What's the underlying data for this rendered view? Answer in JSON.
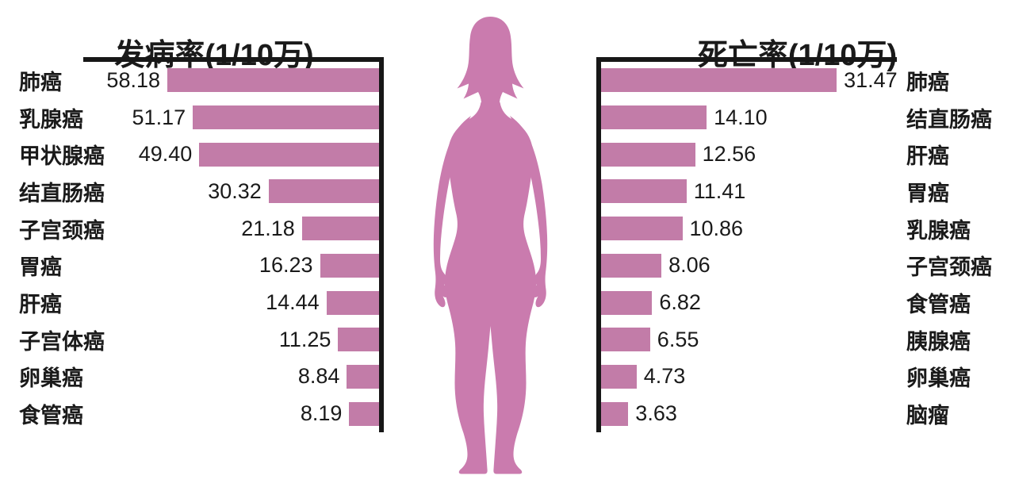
{
  "chart_data": [
    {
      "type": "bar",
      "orientation": "horizontal-bars-growing-left",
      "title": "发病率(1/10万)",
      "categories": [
        "肺癌",
        "乳腺癌",
        "甲状腺癌",
        "结直肠癌",
        "子宫颈癌",
        "胃癌",
        "肝癌",
        "子宫体癌",
        "卵巢癌",
        "食管癌"
      ],
      "values": [
        58.18,
        51.17,
        49.4,
        30.32,
        21.18,
        16.23,
        14.44,
        11.25,
        8.84,
        8.19
      ],
      "value_labels": [
        "58.18",
        "51.17",
        "49.40",
        "30.32",
        "21.18",
        "16.23",
        "14.44",
        "11.25",
        "8.84",
        "8.19"
      ],
      "xlim": [
        0,
        82
      ],
      "grid": false,
      "legend": "none",
      "bar_color": "#c27ca8",
      "category_labels_position": "far-left",
      "value_labels_position": "left-of-bar"
    },
    {
      "type": "bar",
      "orientation": "horizontal-bars-growing-right",
      "title": "死亡率(1/10万)",
      "categories": [
        "肺癌",
        "结直肠癌",
        "肝癌",
        "胃癌",
        "乳腺癌",
        "子宫颈癌",
        "食管癌",
        "胰腺癌",
        "卵巢癌",
        "脑瘤"
      ],
      "values": [
        31.47,
        14.1,
        12.56,
        11.41,
        10.86,
        8.06,
        6.82,
        6.55,
        4.73,
        3.63
      ],
      "value_labels": [
        "31.47",
        "14.10",
        "12.56",
        "11.41",
        "10.86",
        "8.06",
        "6.82",
        "6.55",
        "4.73",
        "3.63"
      ],
      "xlim": [
        0,
        40
      ],
      "grid": false,
      "legend": "none",
      "bar_color": "#c27ca8",
      "category_labels_position": "far-right",
      "value_labels_position": "right-of-bar"
    }
  ],
  "figure": {
    "name": "female-body-silhouette",
    "color": "#ca7bae"
  },
  "colors": {
    "bar": "#c27ca8",
    "body": "#ca7bae",
    "axis": "#171717",
    "ink": "#1a1a1a",
    "background": "#ffffff"
  }
}
